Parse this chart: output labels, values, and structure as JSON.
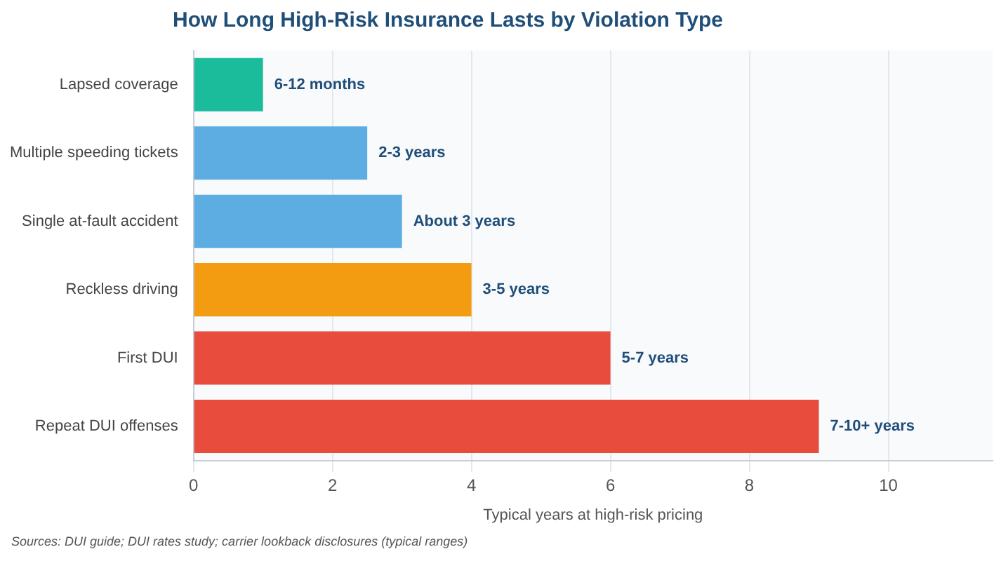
{
  "chart_data": {
    "type": "bar",
    "orientation": "horizontal",
    "title": "How Long High-Risk Insurance Lasts by Violation Type",
    "xlabel": "Typical years at high-risk pricing",
    "categories": [
      "Lapsed coverage",
      "Multiple speeding tickets",
      "Single at-fault accident",
      "Reckless driving",
      "First DUI",
      "Repeat DUI offenses"
    ],
    "values": [
      1,
      2.5,
      3,
      4,
      6,
      9
    ],
    "colors": [
      "#1abc9c",
      "#5dade2",
      "#5dade2",
      "#f39c12",
      "#e74c3c",
      "#e74c3c"
    ],
    "value_labels": [
      "6-12 months",
      "2-3 years",
      "About 3 years",
      "3-5 years",
      "5-7 years",
      "7-10+ years"
    ],
    "xlim": [
      0,
      11.5
    ],
    "xticks": [
      0,
      2,
      4,
      6,
      8,
      10
    ],
    "grid": "x",
    "annotations": [
      "Sources: DUI guide; DUI rates study; carrier lookback disclosures (typical ranges)"
    ]
  }
}
